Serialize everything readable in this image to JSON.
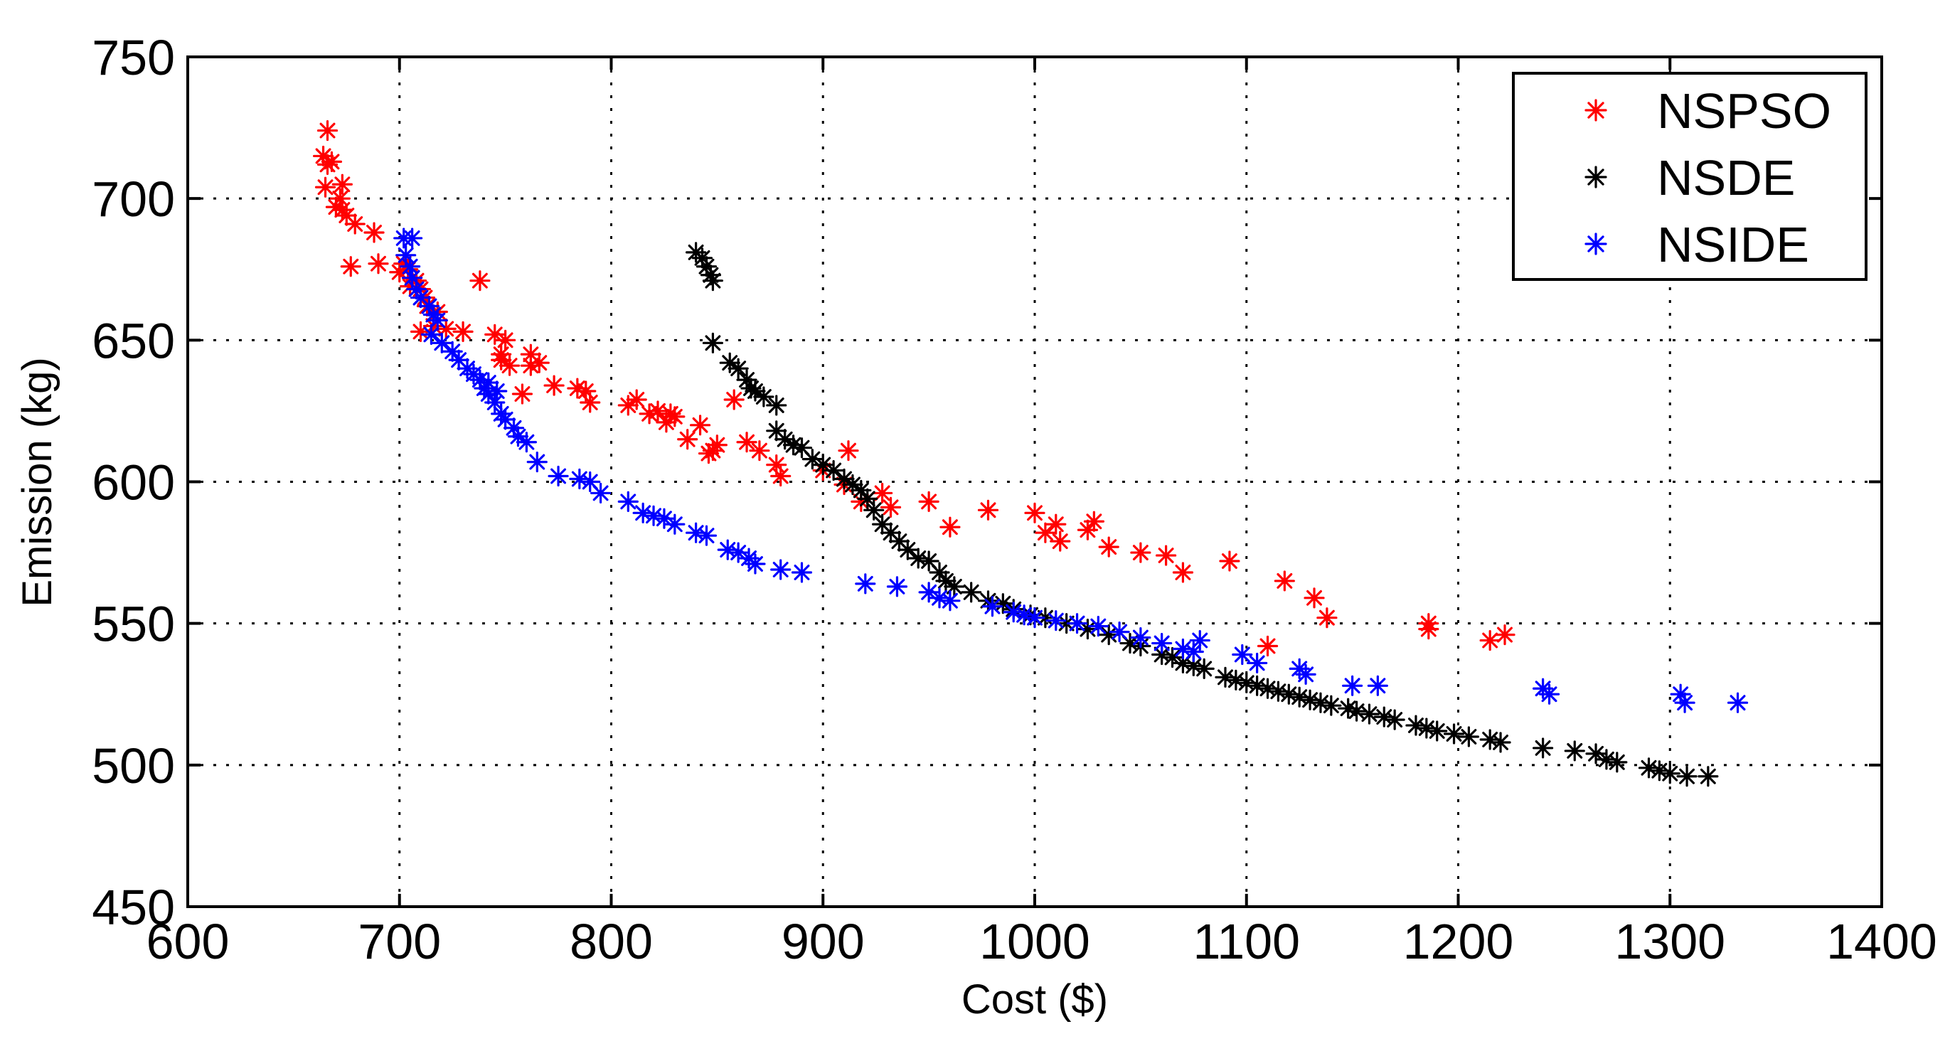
{
  "chart_data": {
    "type": "scatter",
    "title": "",
    "xlabel": "Cost ($)",
    "ylabel": "Emission (kg)",
    "xlim": [
      600,
      1400
    ],
    "ylim": [
      450,
      750
    ],
    "xticks": [
      600,
      700,
      800,
      900,
      1000,
      1100,
      1200,
      1300,
      1400
    ],
    "yticks": [
      450,
      500,
      550,
      600,
      650,
      700,
      750
    ],
    "grid": true,
    "legend_position": "top-right",
    "marker": "*",
    "series": [
      {
        "name": "NSPSO",
        "color": "#ff0000",
        "points": [
          [
            666,
            724
          ],
          [
            664,
            715
          ],
          [
            666,
            712
          ],
          [
            668,
            713
          ],
          [
            665,
            704
          ],
          [
            670,
            697
          ],
          [
            673,
            705
          ],
          [
            672,
            700
          ],
          [
            675,
            694
          ],
          [
            673,
            696
          ],
          [
            679,
            691
          ],
          [
            688,
            688
          ],
          [
            677,
            676
          ],
          [
            690,
            677
          ],
          [
            700,
            674
          ],
          [
            702,
            677
          ],
          [
            704,
            675
          ],
          [
            706,
            672
          ],
          [
            705,
            669
          ],
          [
            708,
            671
          ],
          [
            710,
            668
          ],
          [
            712,
            665
          ],
          [
            713,
            662
          ],
          [
            718,
            660
          ],
          [
            716,
            655
          ],
          [
            710,
            653
          ],
          [
            722,
            654
          ],
          [
            730,
            653
          ],
          [
            738,
            671
          ],
          [
            745,
            652
          ],
          [
            750,
            650
          ],
          [
            748,
            643
          ],
          [
            752,
            641
          ],
          [
            748,
            645
          ],
          [
            758,
            631
          ],
          [
            762,
            641
          ],
          [
            762,
            645
          ],
          [
            766,
            642
          ],
          [
            773,
            634
          ],
          [
            784,
            633
          ],
          [
            788,
            632
          ],
          [
            790,
            628
          ],
          [
            808,
            627
          ],
          [
            812,
            629
          ],
          [
            818,
            624
          ],
          [
            822,
            625
          ],
          [
            826,
            621
          ],
          [
            830,
            623
          ],
          [
            828,
            624
          ],
          [
            836,
            615
          ],
          [
            842,
            620
          ],
          [
            846,
            610
          ],
          [
            850,
            613
          ],
          [
            848,
            611
          ],
          [
            858,
            629
          ],
          [
            864,
            614
          ],
          [
            870,
            611
          ],
          [
            878,
            606
          ],
          [
            880,
            602
          ],
          [
            900,
            604
          ],
          [
            910,
            599
          ],
          [
            912,
            611
          ],
          [
            918,
            593
          ],
          [
            928,
            596
          ],
          [
            932,
            591
          ],
          [
            950,
            593
          ],
          [
            960,
            584
          ],
          [
            978,
            590
          ],
          [
            1000,
            589
          ],
          [
            1005,
            582
          ],
          [
            1010,
            585
          ],
          [
            1012,
            579
          ],
          [
            1025,
            583
          ],
          [
            1028,
            586
          ],
          [
            1035,
            577
          ],
          [
            1050,
            575
          ],
          [
            1062,
            574
          ],
          [
            1070,
            568
          ],
          [
            1092,
            572
          ],
          [
            1110,
            542
          ],
          [
            1118,
            565
          ],
          [
            1132,
            559
          ],
          [
            1138,
            552
          ],
          [
            1186,
            550
          ],
          [
            1186,
            548
          ],
          [
            1215,
            544
          ],
          [
            1222,
            546
          ]
        ]
      },
      {
        "name": "NSDE",
        "color": "#000000",
        "points": [
          [
            840,
            681
          ],
          [
            843,
            679
          ],
          [
            845,
            676
          ],
          [
            847,
            673
          ],
          [
            848,
            671
          ],
          [
            848,
            649
          ],
          [
            856,
            642
          ],
          [
            860,
            640
          ],
          [
            864,
            636
          ],
          [
            866,
            633
          ],
          [
            868,
            632
          ],
          [
            872,
            630
          ],
          [
            878,
            627
          ],
          [
            878,
            618
          ],
          [
            882,
            615
          ],
          [
            886,
            613
          ],
          [
            890,
            612
          ],
          [
            895,
            608
          ],
          [
            900,
            606
          ],
          [
            905,
            604
          ],
          [
            910,
            601
          ],
          [
            914,
            599
          ],
          [
            918,
            597
          ],
          [
            921,
            594
          ],
          [
            924,
            590
          ],
          [
            928,
            585
          ],
          [
            932,
            582
          ],
          [
            936,
            579
          ],
          [
            940,
            576
          ],
          [
            945,
            573
          ],
          [
            950,
            572
          ],
          [
            955,
            568
          ],
          [
            958,
            565
          ],
          [
            962,
            563
          ],
          [
            970,
            561
          ],
          [
            978,
            558
          ],
          [
            985,
            557
          ],
          [
            990,
            555
          ],
          [
            998,
            553
          ],
          [
            1005,
            552
          ],
          [
            1015,
            550
          ],
          [
            1025,
            548
          ],
          [
            1035,
            546
          ],
          [
            1045,
            543
          ],
          [
            1050,
            542
          ],
          [
            1060,
            539
          ],
          [
            1065,
            538
          ],
          [
            1070,
            536
          ],
          [
            1075,
            535
          ],
          [
            1080,
            534
          ],
          [
            1090,
            531
          ],
          [
            1095,
            530
          ],
          [
            1100,
            529
          ],
          [
            1105,
            528
          ],
          [
            1110,
            527
          ],
          [
            1115,
            526
          ],
          [
            1120,
            525
          ],
          [
            1125,
            524
          ],
          [
            1130,
            523
          ],
          [
            1135,
            522
          ],
          [
            1140,
            521
          ],
          [
            1148,
            520
          ],
          [
            1152,
            519
          ],
          [
            1158,
            518
          ],
          [
            1165,
            517
          ],
          [
            1170,
            516
          ],
          [
            1180,
            514
          ],
          [
            1185,
            513
          ],
          [
            1190,
            512
          ],
          [
            1198,
            511
          ],
          [
            1205,
            510
          ],
          [
            1215,
            509
          ],
          [
            1220,
            508
          ],
          [
            1240,
            506
          ],
          [
            1255,
            505
          ],
          [
            1265,
            504
          ],
          [
            1270,
            502
          ],
          [
            1275,
            501
          ],
          [
            1290,
            499
          ],
          [
            1295,
            498
          ],
          [
            1300,
            497
          ],
          [
            1308,
            496
          ],
          [
            1318,
            496
          ]
        ]
      },
      {
        "name": "NSIDE",
        "color": "#0000ff",
        "points": [
          [
            702,
            686
          ],
          [
            706,
            686
          ],
          [
            703,
            680
          ],
          [
            705,
            676
          ],
          [
            706,
            672
          ],
          [
            708,
            668
          ],
          [
            710,
            665
          ],
          [
            714,
            662
          ],
          [
            716,
            659
          ],
          [
            718,
            657
          ],
          [
            715,
            652
          ],
          [
            720,
            649
          ],
          [
            725,
            646
          ],
          [
            728,
            643
          ],
          [
            732,
            640
          ],
          [
            735,
            638
          ],
          [
            738,
            636
          ],
          [
            740,
            633
          ],
          [
            742,
            631
          ],
          [
            745,
            628
          ],
          [
            748,
            624
          ],
          [
            750,
            622
          ],
          [
            754,
            619
          ],
          [
            756,
            616
          ],
          [
            760,
            614
          ],
          [
            742,
            635
          ],
          [
            746,
            632
          ],
          [
            765,
            607
          ],
          [
            775,
            602
          ],
          [
            785,
            601
          ],
          [
            790,
            600
          ],
          [
            795,
            596
          ],
          [
            808,
            593
          ],
          [
            815,
            589
          ],
          [
            820,
            588
          ],
          [
            825,
            587
          ],
          [
            830,
            585
          ],
          [
            840,
            582
          ],
          [
            845,
            581
          ],
          [
            855,
            576
          ],
          [
            860,
            575
          ],
          [
            865,
            573
          ],
          [
            868,
            571
          ],
          [
            880,
            569
          ],
          [
            890,
            568
          ],
          [
            920,
            564
          ],
          [
            935,
            563
          ],
          [
            950,
            561
          ],
          [
            955,
            559
          ],
          [
            960,
            558
          ],
          [
            980,
            556
          ],
          [
            990,
            554
          ],
          [
            995,
            553
          ],
          [
            1000,
            552
          ],
          [
            1010,
            551
          ],
          [
            1020,
            550
          ],
          [
            1030,
            549
          ],
          [
            1040,
            547
          ],
          [
            1050,
            545
          ],
          [
            1060,
            543
          ],
          [
            1070,
            541
          ],
          [
            1075,
            540
          ],
          [
            1078,
            544
          ],
          [
            1098,
            539
          ],
          [
            1105,
            536
          ],
          [
            1125,
            534
          ],
          [
            1128,
            532
          ],
          [
            1150,
            528
          ],
          [
            1162,
            528
          ],
          [
            1240,
            527
          ],
          [
            1243,
            525
          ],
          [
            1305,
            525
          ],
          [
            1307,
            522
          ],
          [
            1332,
            522
          ]
        ]
      }
    ]
  }
}
